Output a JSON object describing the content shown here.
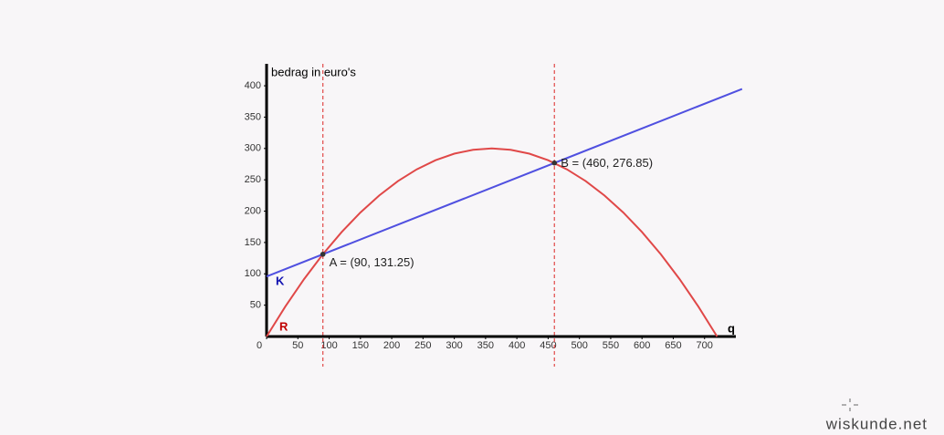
{
  "chart_data": {
    "type": "line",
    "y_label": "bedrag in euro's",
    "x_label": "q",
    "xlim": [
      0,
      750
    ],
    "ylim": [
      0,
      435
    ],
    "xticks": [
      0,
      50,
      100,
      150,
      200,
      250,
      300,
      350,
      400,
      450,
      500,
      550,
      600,
      650,
      700
    ],
    "yticks": [
      50,
      100,
      150,
      200,
      250,
      300,
      350,
      400
    ],
    "series": [
      {
        "name": "R",
        "color": "#e04848",
        "label_color": "#c00000",
        "x": [
          0,
          30,
          60,
          90,
          120,
          150,
          180,
          210,
          240,
          270,
          300,
          330,
          360,
          390,
          420,
          450,
          480,
          510,
          540,
          570,
          600,
          630,
          660,
          690,
          720
        ],
        "values": [
          0,
          47.92,
          91.67,
          131.25,
          166.67,
          197.92,
          225,
          247.92,
          266.67,
          281.25,
          291.67,
          297.92,
          300,
          297.92,
          291.67,
          281.25,
          266.67,
          247.92,
          225,
          197.92,
          166.67,
          131.25,
          91.67,
          47.92,
          0
        ]
      },
      {
        "name": "K",
        "color": "#5050e0",
        "label_color": "#1010b0",
        "x": [
          0,
          760
        ],
        "values": [
          95.8,
          394.9
        ]
      }
    ],
    "points": [
      {
        "label": "A = (90, 131.25)",
        "x": 90,
        "y": 131.25
      },
      {
        "label": "B = (460, 276.85)",
        "x": 460,
        "y": 276.85
      }
    ],
    "guide_color": "#e04848",
    "watermark": "wiskunde.net"
  }
}
